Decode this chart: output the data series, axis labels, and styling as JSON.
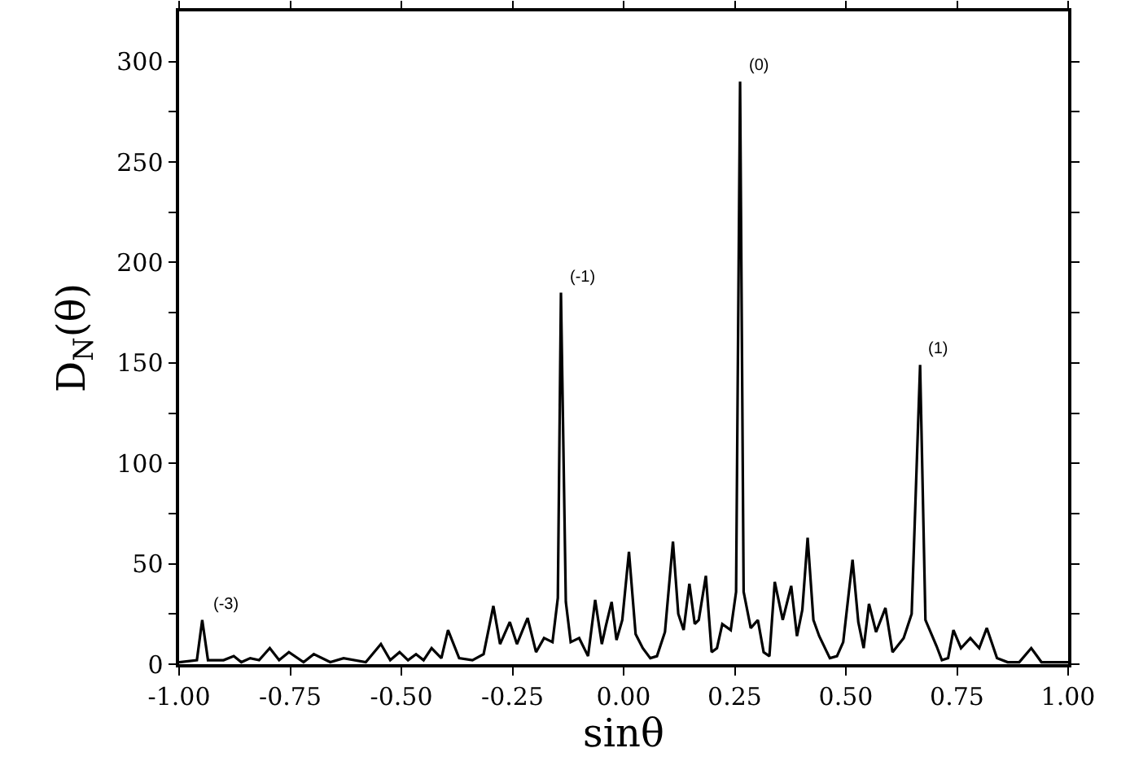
{
  "chart_data": {
    "type": "line",
    "xlabel": "sinθ",
    "ylabel": "D$_{N}$(θ)",
    "x": [
      -1.0,
      -0.96,
      -0.948,
      -0.935,
      -0.9,
      -0.877,
      -0.86,
      -0.84,
      -0.82,
      -0.796,
      -0.775,
      -0.753,
      -0.72,
      -0.697,
      -0.66,
      -0.63,
      -0.58,
      -0.546,
      -0.525,
      -0.504,
      -0.485,
      -0.467,
      -0.45,
      -0.432,
      -0.41,
      -0.395,
      -0.37,
      -0.34,
      -0.315,
      -0.293,
      -0.278,
      -0.256,
      -0.24,
      -0.216,
      -0.197,
      -0.179,
      -0.16,
      -0.148,
      -0.141,
      -0.13,
      -0.119,
      -0.1,
      -0.08,
      -0.064,
      -0.049,
      -0.04,
      -0.027,
      -0.016,
      -0.003,
      0.012,
      0.027,
      0.043,
      0.06,
      0.075,
      0.093,
      0.111,
      0.123,
      0.135,
      0.148,
      0.16,
      0.169,
      0.185,
      0.198,
      0.21,
      0.222,
      0.241,
      0.253,
      0.262,
      0.27,
      0.286,
      0.302,
      0.315,
      0.328,
      0.34,
      0.358,
      0.377,
      0.39,
      0.402,
      0.414,
      0.427,
      0.44,
      0.464,
      0.48,
      0.494,
      0.515,
      0.528,
      0.54,
      0.552,
      0.568,
      0.589,
      0.605,
      0.63,
      0.648,
      0.667,
      0.679,
      0.704,
      0.716,
      0.73,
      0.742,
      0.759,
      0.78,
      0.8,
      0.817,
      0.84,
      0.864,
      0.89,
      0.917,
      0.94,
      0.97,
      1.0
    ],
    "values": [
      1,
      2,
      22,
      2,
      2,
      4,
      1,
      3,
      2,
      8,
      2,
      6,
      1,
      5,
      1,
      3,
      1,
      10,
      2,
      6,
      2,
      5,
      2,
      8,
      3,
      17,
      3,
      2,
      5,
      29,
      10,
      21,
      10,
      23,
      6,
      13,
      11,
      33,
      185,
      31,
      11,
      13,
      4,
      32,
      10,
      19,
      31,
      12,
      22,
      56,
      15,
      8,
      3,
      4,
      16,
      61,
      25,
      17,
      40,
      20,
      22,
      44,
      6,
      8,
      20,
      17,
      36,
      290,
      36,
      18,
      22,
      6,
      4,
      41,
      22,
      39,
      14,
      27,
      63,
      22,
      14,
      3,
      4,
      11,
      52,
      21,
      8,
      30,
      16,
      28,
      6,
      13,
      25,
      149,
      22,
      9,
      2,
      3,
      17,
      8,
      13,
      8,
      18,
      3,
      1,
      1,
      8,
      1,
      1,
      1
    ],
    "color": "#000000",
    "xlim": [
      -1,
      1
    ],
    "ylim": [
      0,
      325
    ],
    "xticks": [
      {
        "value": -1,
        "label": "-1.00"
      },
      {
        "value": -0.75,
        "label": "-0.75"
      },
      {
        "value": -0.5,
        "label": "-0.50"
      },
      {
        "value": -0.25,
        "label": "-0.25"
      },
      {
        "value": 0,
        "label": "0.00"
      },
      {
        "value": 0.25,
        "label": "0.25"
      },
      {
        "value": 0.5,
        "label": "0.50"
      },
      {
        "value": 0.75,
        "label": "0.75"
      },
      {
        "value": 1,
        "label": "1.00"
      }
    ],
    "yticks": [
      0,
      {
        "value": 25,
        "label": null
      },
      50,
      {
        "value": 75,
        "label": null
      },
      100,
      {
        "value": 125,
        "label": null
      },
      150,
      {
        "value": 175,
        "label": null
      },
      200,
      {
        "value": 225,
        "label": null
      },
      250,
      {
        "value": 275,
        "label": null
      },
      300
    ],
    "annotations": [
      {
        "text": "(-3)",
        "x": -0.94,
        "y": 22
      },
      {
        "text": "(-1)",
        "x": -0.141,
        "y": 185
      },
      {
        "text": "(0)",
        "x": 0.262,
        "y": 290
      },
      {
        "text": "(1)",
        "x": 0.667,
        "y": 149
      }
    ],
    "marker": "none",
    "line_style": "solid"
  }
}
